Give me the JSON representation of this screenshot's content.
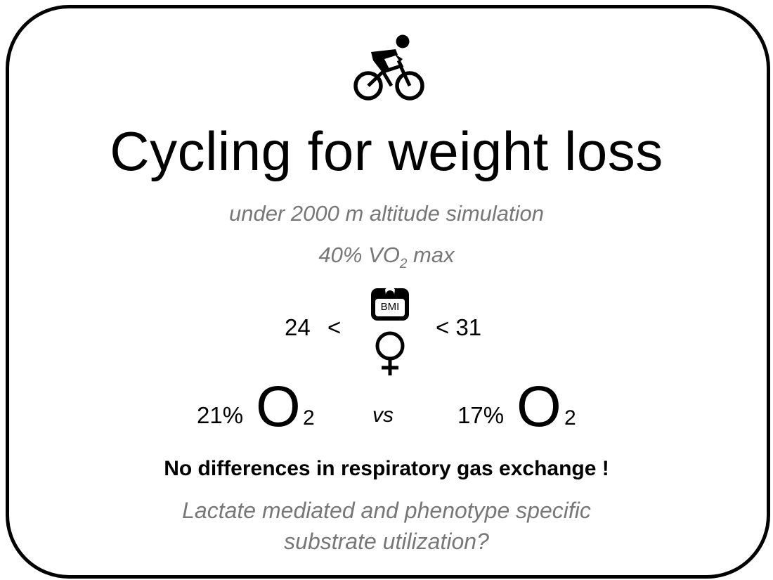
{
  "icons": [
    "cyclist-icon",
    "bmi-scale-icon",
    "female-symbol-icon"
  ],
  "title": "Cycling for weight loss",
  "subtitle_1": "under 2000 m altitude simulation",
  "subtitle_2": {
    "prefix": "40% VO",
    "subscript": "2",
    "suffix": " max"
  },
  "bmi_range": {
    "lower": "24",
    "lower_op": "<",
    "upper": "< 31",
    "badge_text": "BMI"
  },
  "comparison": {
    "left": {
      "percent": "21%",
      "gas": "O",
      "subscript": "2"
    },
    "vs": "vs",
    "right": {
      "percent": "17%",
      "gas": "O",
      "subscript": "2"
    }
  },
  "finding": "No differences in respiratory gas exchange !",
  "question_line_1": "Lactate mediated and phenotype specific",
  "question_line_2": "substrate utilization?",
  "colors": {
    "text": "#000000",
    "subtle_text": "#777777",
    "border": "#000000"
  }
}
